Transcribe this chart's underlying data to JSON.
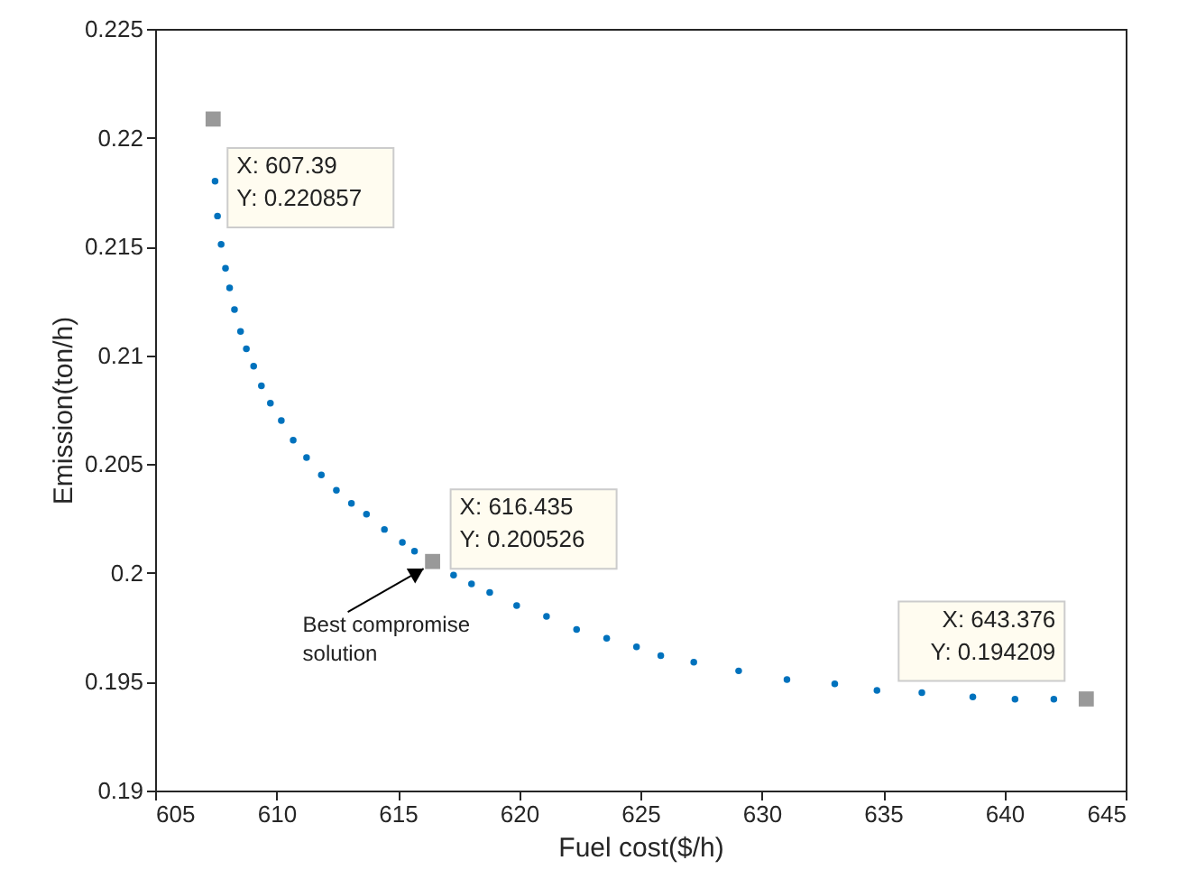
{
  "chart_data": {
    "type": "scatter",
    "xlabel": "Fuel cost($/h)",
    "ylabel": "Emission(ton/h)",
    "xlim": [
      605,
      645
    ],
    "xticks": [
      605,
      610,
      615,
      620,
      625,
      630,
      635,
      640,
      645
    ],
    "ylim": [
      0.19,
      0.225
    ],
    "yticks": [
      0.19,
      0.195,
      0.2,
      0.205,
      0.21,
      0.215,
      0.22,
      0.225
    ],
    "grid": false,
    "series": [
      {
        "color": "#0072bd",
        "marker": "circle",
        "x": [
          607.47,
          607.57,
          607.72,
          607.9,
          608.07,
          608.27,
          608.52,
          608.76,
          609.06,
          609.38,
          609.75,
          610.2,
          610.69,
          611.24,
          611.85,
          612.47,
          613.09,
          613.71,
          614.45,
          615.19,
          615.69,
          617.3,
          618.04,
          618.79,
          619.9,
          621.13,
          622.37,
          623.61,
          624.84,
          625.84,
          627.2,
          629.05,
          631.04,
          633.01,
          634.75,
          636.6,
          638.7,
          640.44,
          642.04
        ],
        "values": [
          0.218,
          0.2164,
          0.2151,
          0.214,
          0.2131,
          0.2121,
          0.2111,
          0.2103,
          0.2095,
          0.2086,
          0.2078,
          0.207,
          0.2061,
          0.2053,
          0.2045,
          0.2038,
          0.2032,
          0.2027,
          0.202,
          0.2014,
          0.201,
          0.1999,
          0.1995,
          0.1991,
          0.1985,
          0.198,
          0.1974,
          0.197,
          0.1966,
          0.1962,
          0.1959,
          0.1955,
          0.1951,
          0.1949,
          0.1946,
          0.1945,
          0.1943,
          0.1942,
          0.1942
        ]
      },
      {
        "color": "#999999",
        "marker": "square",
        "x": [
          607.39,
          616.435,
          643.376
        ],
        "values": [
          0.220857,
          0.200526,
          0.194209
        ]
      }
    ],
    "annotations": [
      {
        "text": "X: 607.39\nY: 0.220857",
        "x": 607.39,
        "y": 0.220857
      },
      {
        "text": "X: 616.435\nY: 0.200526",
        "x": 616.435,
        "y": 0.200526
      },
      {
        "text": "X: 643.376\nY: 0.194209",
        "x": 643.376,
        "y": 0.194209
      },
      {
        "text": "Best compromise\nsolution",
        "x": 616.435,
        "y": 0.200526
      }
    ]
  }
}
